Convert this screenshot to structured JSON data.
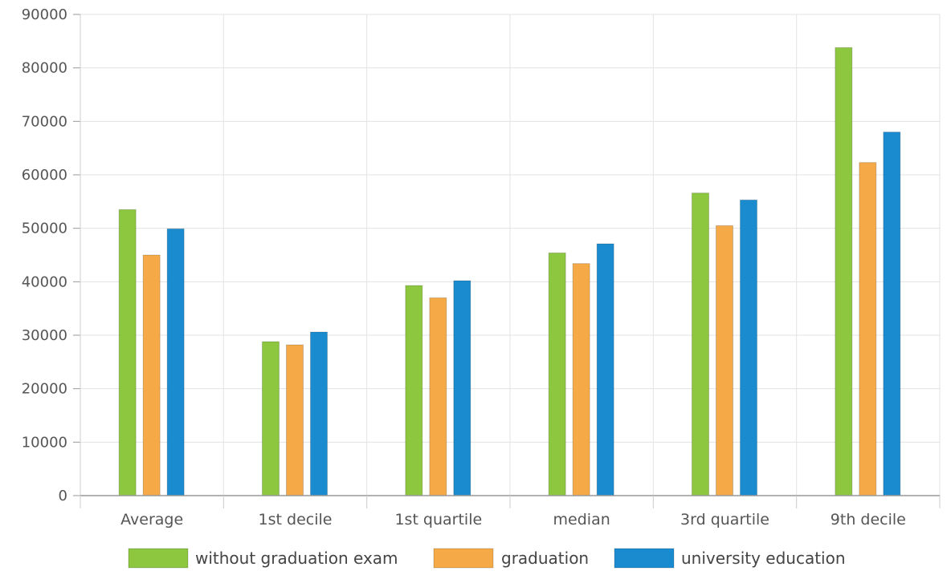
{
  "chart_data": {
    "type": "bar",
    "categories": [
      "Average",
      "1st decile",
      "1st quartile",
      "median",
      "3rd quartile",
      "9th decile"
    ],
    "series": [
      {
        "name": "without graduation exam",
        "color": "#8dc63f",
        "values": [
          53500,
          28800,
          39300,
          45400,
          56600,
          83800
        ]
      },
      {
        "name": "graduation",
        "color": "#f5a947",
        "values": [
          45000,
          28200,
          37000,
          43400,
          50500,
          62300
        ]
      },
      {
        "name": "university education",
        "color": "#1b8bcf",
        "values": [
          49900,
          30600,
          40200,
          47100,
          55300,
          68000
        ]
      }
    ],
    "ylim": [
      0,
      90000
    ],
    "yticks": [
      "0",
      "10000",
      "20000",
      "30000",
      "40000",
      "50000",
      "60000",
      "70000",
      "80000",
      "90000"
    ],
    "grid": true,
    "legend_position": "bottom"
  }
}
